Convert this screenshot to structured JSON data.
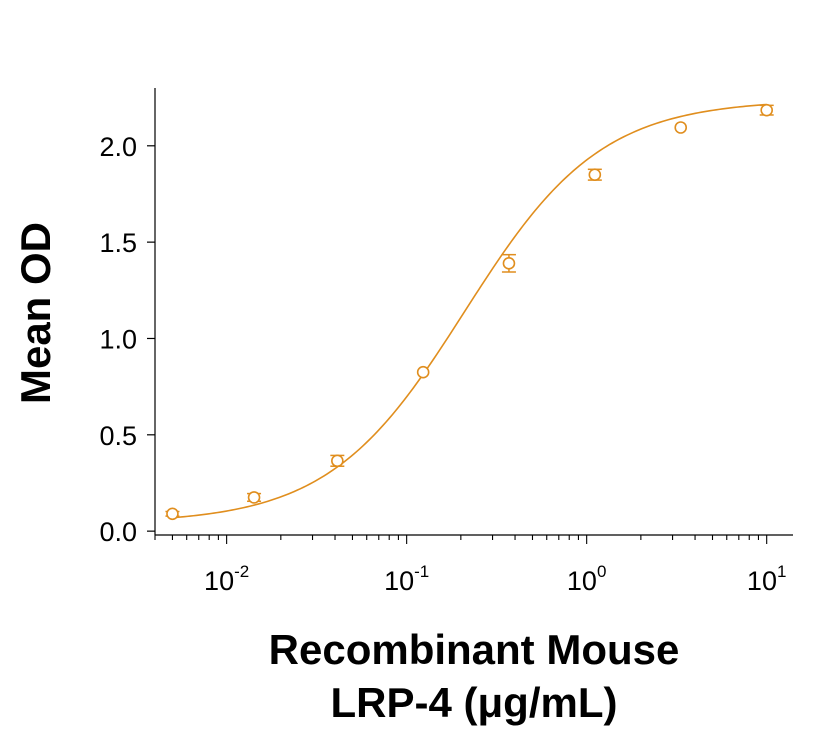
{
  "chart_data": {
    "type": "scatter",
    "title": "",
    "xlabel_lines": [
      "Recombinant Mouse",
      "LRP-4 (μg/mL)"
    ],
    "ylabel": "Mean OD",
    "x_scale": "log",
    "xlim": [
      0.004,
      14
    ],
    "ylim": [
      -0.02,
      2.3
    ],
    "x_ticks": [
      {
        "value": 0.01,
        "base": "10",
        "exp": "-2"
      },
      {
        "value": 0.1,
        "base": "10",
        "exp": "-1"
      },
      {
        "value": 1,
        "base": "10",
        "exp": "0"
      },
      {
        "value": 10,
        "base": "10",
        "exp": "1"
      }
    ],
    "y_ticks": [
      {
        "value": 0.0,
        "label": "0.0"
      },
      {
        "value": 0.5,
        "label": "0.5"
      },
      {
        "value": 1.0,
        "label": "1.0"
      },
      {
        "value": 1.5,
        "label": "1.5"
      },
      {
        "value": 2.0,
        "label": "2.0"
      }
    ],
    "grid": false,
    "legend": "none",
    "color": "#e08e1e",
    "series": [
      {
        "marker": "open-circle",
        "fit": "4PL",
        "x": [
          0.005,
          0.0142,
          0.0412,
          0.1235,
          0.37,
          1.11,
          3.33,
          10
        ],
        "y": [
          0.09,
          0.175,
          0.365,
          0.825,
          1.39,
          1.85,
          2.095,
          2.185
        ],
        "err": [
          0.012,
          0.02,
          0.028,
          0.0,
          0.045,
          0.028,
          0.0,
          0.025
        ]
      }
    ]
  }
}
